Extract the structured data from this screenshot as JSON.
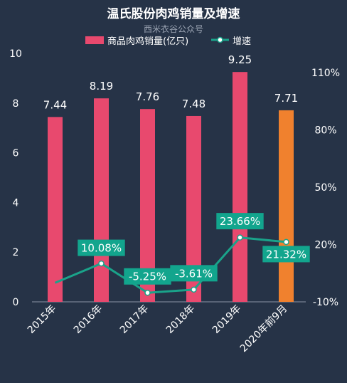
{
  "chart_data": {
    "type": "bar",
    "title": "温氏股份肉鸡销量及增速",
    "subtitle": "西米衣谷公众号",
    "categories": [
      "2015年",
      "2016年",
      "2017年",
      "2018年",
      "2019年",
      "2020年前9月"
    ],
    "series": [
      {
        "name": "商品肉鸡销量(亿只)",
        "type": "bar",
        "axis": "left",
        "values": [
          7.44,
          8.19,
          7.76,
          7.48,
          9.25,
          7.71
        ],
        "labels": [
          "7.44",
          "8.19",
          "7.76",
          "7.48",
          "9.25",
          "7.71"
        ]
      },
      {
        "name": "增速",
        "type": "line",
        "axis": "right",
        "values": [
          -0.02,
          10.08,
          -5.25,
          -3.61,
          23.66,
          21.32
        ],
        "labels": [
          "",
          "10.08%",
          "-5.25%",
          "-3.61%",
          "23.66%",
          "21.32%"
        ]
      }
    ],
    "y_left": {
      "min": 0,
      "max": 10,
      "ticks": [
        "0",
        "2",
        "4",
        "6",
        "8",
        "10"
      ]
    },
    "y_right": {
      "min": -10,
      "max": 120,
      "ticks": [
        "-10%",
        "20%",
        "50%",
        "80%",
        "110%"
      ]
    },
    "grid": false,
    "legend": "top-center"
  },
  "colors": {
    "background": "#263347",
    "bar": "#E8496E",
    "bar_highlight": "#F0812E",
    "line": "#1AA38A",
    "label_box": "#12A58D",
    "text": "#FFFFFF",
    "subtitle": "#9AA3B2"
  }
}
